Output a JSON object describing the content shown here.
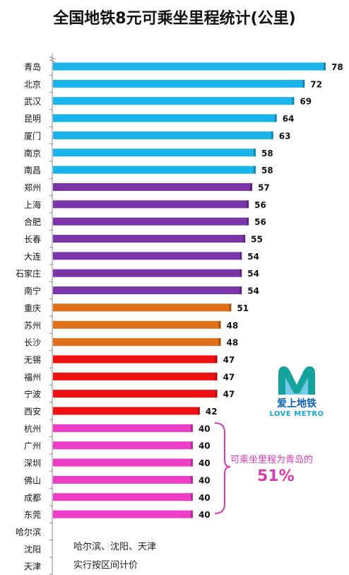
{
  "title": "全国地铁8元可乘坐里程统计(公里)",
  "chart_data": {
    "type": "bar",
    "orientation": "horizontal",
    "title": "全国地铁8元可乘坐里程统计(公里)",
    "xlabel": "",
    "ylabel": "",
    "categories": [
      "青岛",
      "北京",
      "武汉",
      "昆明",
      "厦门",
      "南京",
      "南昌",
      "郑州",
      "上海",
      "合肥",
      "长春",
      "大连",
      "石家庄",
      "南宁",
      "重庆",
      "苏州",
      "长沙",
      "无锡",
      "福州",
      "宁波",
      "西安",
      "杭州",
      "广州",
      "深圳",
      "佛山",
      "成都",
      "东莞",
      "哈尔滨",
      "沈阳",
      "天津"
    ],
    "values": [
      78,
      72,
      69,
      64,
      63,
      58,
      58,
      57,
      56,
      56,
      55,
      54,
      54,
      54,
      51,
      48,
      48,
      47,
      47,
      47,
      42,
      40,
      40,
      40,
      40,
      40,
      40,
      null,
      null,
      null
    ],
    "bar_colors": [
      "#1ab3ea",
      "#1ab3ea",
      "#1ab3ea",
      "#1ab3ea",
      "#1ab3ea",
      "#1ab3ea",
      "#1ab3ea",
      "#7a35a8",
      "#7a35a8",
      "#7a35a8",
      "#7a35a8",
      "#7a35a8",
      "#7a35a8",
      "#7a35a8",
      "#e0701a",
      "#e0701a",
      "#e0701a",
      "#ee1111",
      "#ee1111",
      "#ee1111",
      "#ee1111",
      "#ee3ec8",
      "#ee3ec8",
      "#ee3ec8",
      "#ee3ec8",
      "#ee3ec8",
      "#ee3ec8",
      null,
      null,
      null
    ],
    "xlim": [
      0,
      80
    ],
    "grid": false,
    "legend": "none"
  },
  "annotation": {
    "line1": "可乘坐里程为青岛的",
    "line2": "51%",
    "color": "#d63bb4"
  },
  "note": {
    "line1": "哈尔滨、沈阳、天津",
    "line2": "实行按区间计价"
  },
  "logo": {
    "text": "爱上地铁",
    "sub": "LOVE METRO"
  }
}
